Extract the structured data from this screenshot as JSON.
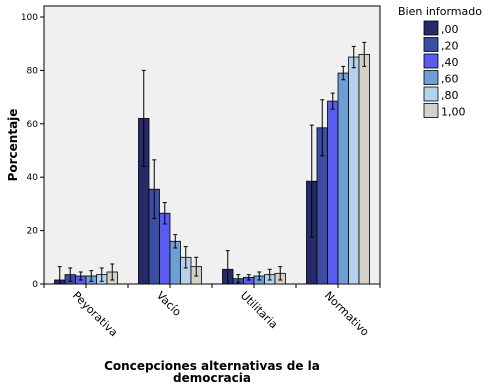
{
  "chart_data": {
    "type": "bar",
    "ylabel": "Porcentaje",
    "xlabel_lines": [
      "Concepciones alternativas de la",
      "democracia"
    ],
    "ylim": [
      0,
      100
    ],
    "yticks": [
      "0",
      "20",
      "40",
      "60",
      "80",
      "100"
    ],
    "categories": [
      "Peyorativa",
      "Vacío",
      "Utilitaria",
      "Normativo"
    ],
    "legend_title": "Bien informado",
    "legend_position": "top-right",
    "error_bars": true,
    "series": [
      {
        "name": ",00",
        "color": "#262a6b",
        "values": [
          1.5,
          62,
          5.5,
          38.5
        ],
        "err": [
          5,
          18,
          7,
          21
        ]
      },
      {
        "name": ",20",
        "color": "#3b4ea3",
        "values": [
          3.5,
          35.5,
          2,
          58.5
        ],
        "err": [
          2.5,
          11,
          1.5,
          10.5
        ]
      },
      {
        "name": ",40",
        "color": "#5a5cf0",
        "values": [
          3,
          26.5,
          2.5,
          68.5
        ],
        "err": [
          1.5,
          4,
          1,
          3
        ]
      },
      {
        "name": ",60",
        "color": "#6e9fd4",
        "values": [
          3,
          16,
          3,
          79
        ],
        "err": [
          2,
          2.5,
          1.5,
          2.5
        ]
      },
      {
        "name": ",80",
        "color": "#b4d2ee",
        "values": [
          3.5,
          10,
          3.5,
          85
        ],
        "err": [
          2.5,
          4,
          2,
          4
        ]
      },
      {
        "name": "1,00",
        "color": "#d6d1c6",
        "values": [
          4.5,
          6.5,
          4,
          86
        ],
        "err": [
          3,
          3.5,
          2.5,
          4.5
        ]
      }
    ]
  }
}
